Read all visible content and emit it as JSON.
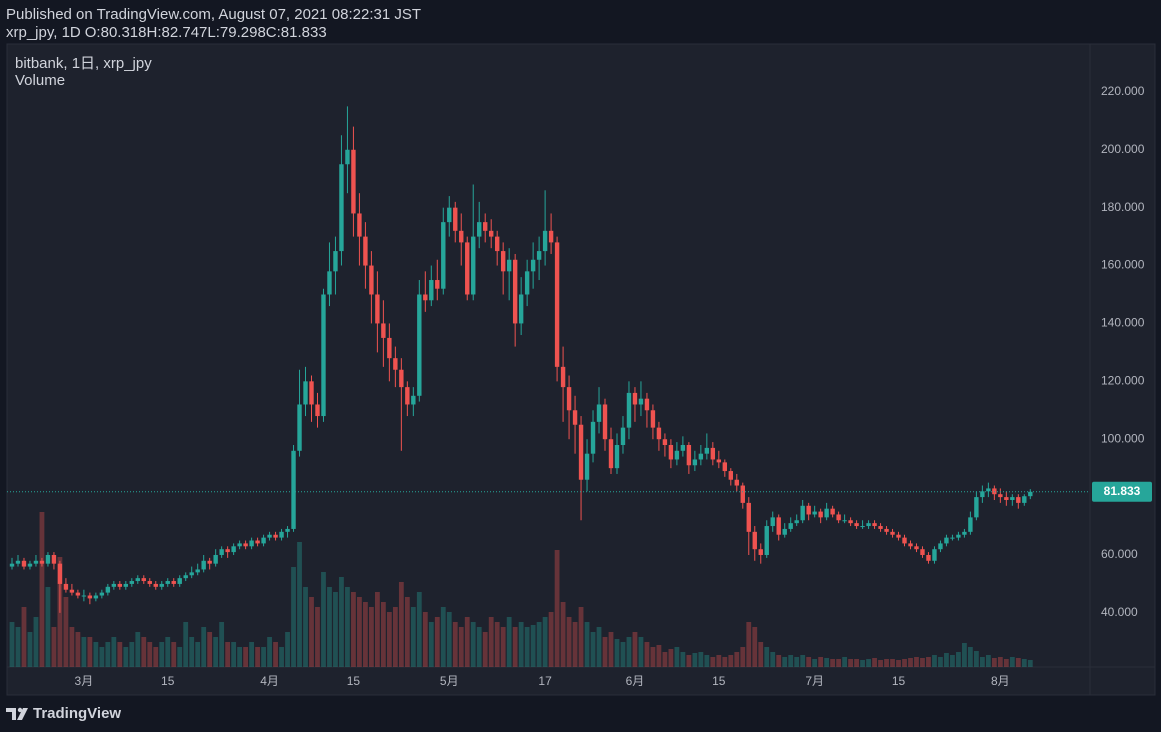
{
  "header": {
    "published": "Published on TradingView.com, August 07, 2021 08:22:31 JST",
    "symbol": "xrp_jpy, 1D"
  },
  "chart_data": {
    "type": "candlestick",
    "legend_lines": [
      "bitbank, 1日, xrp_jpy",
      "Volume"
    ],
    "ohlc_labels": [
      "O:",
      "H:",
      "L:",
      "C:"
    ],
    "up_color": "#26a69a",
    "down_color": "#ef5350",
    "grid": false,
    "ylim": [
      21.3,
      236.2
    ],
    "yticks": [
      {
        "value": 40,
        "label": "40.000"
      },
      {
        "value": 60,
        "label": "60.000"
      },
      {
        "value": 80,
        "label": "80.000"
      },
      {
        "value": 100,
        "label": "100.000"
      },
      {
        "value": 120,
        "label": "120.000"
      },
      {
        "value": 140,
        "label": "140.000"
      },
      {
        "value": 160,
        "label": "160.000"
      },
      {
        "value": 180,
        "label": "180.000"
      },
      {
        "value": 200,
        "label": "200.000"
      },
      {
        "value": 220,
        "label": "220.000"
      }
    ],
    "categories": [
      null,
      null,
      null,
      null,
      null,
      null,
      null,
      null,
      null,
      null,
      null,
      null,
      "3月",
      null,
      null,
      null,
      null,
      null,
      null,
      null,
      null,
      null,
      null,
      null,
      null,
      null,
      "15",
      null,
      null,
      null,
      null,
      null,
      null,
      null,
      null,
      null,
      null,
      null,
      null,
      null,
      null,
      null,
      null,
      "4月",
      null,
      null,
      null,
      null,
      null,
      null,
      null,
      null,
      null,
      null,
      null,
      null,
      null,
      "15",
      null,
      null,
      null,
      null,
      null,
      null,
      null,
      null,
      null,
      null,
      null,
      null,
      null,
      null,
      null,
      "5月",
      null,
      null,
      null,
      null,
      null,
      null,
      null,
      null,
      null,
      null,
      null,
      null,
      null,
      null,
      null,
      "17",
      null,
      null,
      null,
      null,
      null,
      null,
      null,
      null,
      null,
      null,
      null,
      null,
      null,
      null,
      "6月",
      null,
      null,
      null,
      null,
      null,
      null,
      null,
      null,
      null,
      null,
      null,
      null,
      null,
      "15",
      null,
      null,
      null,
      null,
      null,
      null,
      null,
      null,
      null,
      null,
      null,
      null,
      null,
      null,
      null,
      "7月",
      null,
      null,
      null,
      null,
      null,
      null,
      null,
      null,
      null,
      null,
      null,
      null,
      null,
      "15",
      null,
      null,
      null,
      null,
      null,
      null,
      null,
      null,
      null,
      null,
      null,
      null,
      null,
      null,
      null,
      null,
      "8月",
      null,
      null,
      null,
      null,
      null
    ],
    "ohlc": [
      [
        56,
        59,
        55,
        57
      ],
      [
        57,
        60,
        56,
        58
      ],
      [
        58,
        59,
        55,
        56
      ],
      [
        56,
        58,
        55,
        57
      ],
      [
        57,
        60,
        56,
        58
      ],
      [
        58,
        59,
        56,
        57
      ],
      [
        57,
        61,
        56,
        60
      ],
      [
        60,
        61,
        55,
        57
      ],
      [
        57,
        58,
        40,
        50
      ],
      [
        50,
        52,
        47,
        48
      ],
      [
        48,
        50,
        46,
        47
      ],
      [
        47,
        48,
        45,
        46
      ],
      [
        46,
        48,
        44,
        46
      ],
      [
        46,
        47,
        43,
        45
      ],
      [
        45,
        47,
        44,
        46
      ],
      [
        46,
        48,
        45,
        47
      ],
      [
        47,
        50,
        46,
        49
      ],
      [
        49,
        51,
        48,
        50
      ],
      [
        50,
        51,
        48,
        49
      ],
      [
        49,
        51,
        48,
        50
      ],
      [
        50,
        52,
        49,
        51
      ],
      [
        51,
        53,
        50,
        52
      ],
      [
        52,
        53,
        50,
        51
      ],
      [
        51,
        52,
        49,
        50
      ],
      [
        50,
        51,
        48,
        49
      ],
      [
        49,
        51,
        48,
        50
      ],
      [
        50,
        52,
        49,
        51
      ],
      [
        51,
        52,
        49,
        50
      ],
      [
        50,
        53,
        49,
        52
      ],
      [
        52,
        54,
        51,
        53
      ],
      [
        53,
        56,
        52,
        54
      ],
      [
        54,
        57,
        53,
        55
      ],
      [
        55,
        60,
        54,
        58
      ],
      [
        58,
        59,
        55,
        57
      ],
      [
        57,
        62,
        56,
        60
      ],
      [
        60,
        63,
        59,
        62
      ],
      [
        62,
        63,
        59,
        61
      ],
      [
        61,
        64,
        60,
        63
      ],
      [
        63,
        65,
        62,
        64
      ],
      [
        64,
        65,
        62,
        63
      ],
      [
        63,
        66,
        62,
        65
      ],
      [
        65,
        66,
        63,
        64
      ],
      [
        64,
        67,
        63,
        66
      ],
      [
        66,
        68,
        65,
        67
      ],
      [
        67,
        68,
        65,
        66
      ],
      [
        66,
        69,
        65,
        68
      ],
      [
        68,
        70,
        66,
        69
      ],
      [
        69,
        98,
        68,
        96
      ],
      [
        96,
        124,
        94,
        112
      ],
      [
        112,
        125,
        108,
        120
      ],
      [
        120,
        122,
        106,
        112
      ],
      [
        112,
        116,
        104,
        108
      ],
      [
        108,
        152,
        106,
        150
      ],
      [
        150,
        168,
        146,
        158
      ],
      [
        158,
        170,
        150,
        165
      ],
      [
        165,
        205,
        160,
        195
      ],
      [
        195,
        215,
        185,
        200
      ],
      [
        200,
        208,
        170,
        178
      ],
      [
        178,
        185,
        160,
        170
      ],
      [
        170,
        175,
        152,
        160
      ],
      [
        160,
        165,
        140,
        150
      ],
      [
        150,
        158,
        130,
        140
      ],
      [
        140,
        148,
        125,
        135
      ],
      [
        135,
        140,
        120,
        128
      ],
      [
        128,
        132,
        118,
        124
      ],
      [
        124,
        128,
        96,
        118
      ],
      [
        118,
        120,
        108,
        112
      ],
      [
        112,
        118,
        108,
        115
      ],
      [
        115,
        155,
        113,
        150
      ],
      [
        150,
        158,
        144,
        148
      ],
      [
        148,
        160,
        146,
        155
      ],
      [
        155,
        162,
        148,
        152
      ],
      [
        152,
        180,
        150,
        175
      ],
      [
        175,
        184,
        170,
        180
      ],
      [
        180,
        182,
        168,
        172
      ],
      [
        172,
        178,
        160,
        168
      ],
      [
        168,
        170,
        148,
        150
      ],
      [
        150,
        188,
        148,
        170
      ],
      [
        170,
        182,
        166,
        175
      ],
      [
        175,
        178,
        168,
        172
      ],
      [
        172,
        176,
        166,
        170
      ],
      [
        170,
        172,
        160,
        165
      ],
      [
        165,
        168,
        150,
        158
      ],
      [
        158,
        166,
        148,
        162
      ],
      [
        162,
        164,
        132,
        140
      ],
      [
        140,
        156,
        136,
        150
      ],
      [
        150,
        162,
        146,
        158
      ],
      [
        158,
        168,
        152,
        162
      ],
      [
        162,
        170,
        155,
        165
      ],
      [
        165,
        186,
        160,
        172
      ],
      [
        172,
        178,
        164,
        168
      ],
      [
        168,
        170,
        120,
        125
      ],
      [
        125,
        132,
        106,
        118
      ],
      [
        118,
        122,
        100,
        110
      ],
      [
        110,
        115,
        95,
        105
      ],
      [
        105,
        108,
        72,
        86
      ],
      [
        86,
        100,
        82,
        95
      ],
      [
        95,
        110,
        92,
        106
      ],
      [
        106,
        118,
        102,
        112
      ],
      [
        112,
        114,
        96,
        100
      ],
      [
        100,
        104,
        88,
        90
      ],
      [
        90,
        102,
        88,
        98
      ],
      [
        98,
        108,
        95,
        104
      ],
      [
        104,
        120,
        100,
        116
      ],
      [
        116,
        118,
        106,
        112
      ],
      [
        112,
        120,
        108,
        114
      ],
      [
        114,
        116,
        104,
        110
      ],
      [
        110,
        112,
        100,
        104
      ],
      [
        104,
        106,
        96,
        100
      ],
      [
        100,
        102,
        94,
        98
      ],
      [
        98,
        100,
        90,
        93
      ],
      [
        93,
        99,
        91,
        96
      ],
      [
        96,
        101,
        94,
        98
      ],
      [
        98,
        99,
        88,
        91
      ],
      [
        91,
        96,
        89,
        93
      ],
      [
        93,
        98,
        91,
        95
      ],
      [
        95,
        102,
        93,
        97
      ],
      [
        97,
        99,
        91,
        93
      ],
      [
        93,
        96,
        90,
        92
      ],
      [
        92,
        93,
        87,
        89
      ],
      [
        89,
        90,
        84,
        86
      ],
      [
        86,
        88,
        82,
        84
      ],
      [
        84,
        85,
        76,
        78
      ],
      [
        78,
        80,
        60,
        68
      ],
      [
        68,
        70,
        58,
        62
      ],
      [
        62,
        64,
        57,
        60
      ],
      [
        60,
        72,
        59,
        70
      ],
      [
        70,
        75,
        68,
        73
      ],
      [
        73,
        74,
        65,
        67
      ],
      [
        67,
        71,
        66,
        69
      ],
      [
        69,
        73,
        68,
        71
      ],
      [
        71,
        74,
        70,
        72
      ],
      [
        72,
        79,
        71,
        77
      ],
      [
        77,
        78,
        72,
        74
      ],
      [
        74,
        77,
        73,
        75
      ],
      [
        75,
        76,
        71,
        73
      ],
      [
        73,
        78,
        72,
        76
      ],
      [
        76,
        77,
        73,
        74
      ],
      [
        74,
        75,
        71,
        72
      ],
      [
        72,
        74,
        71,
        72
      ],
      [
        72,
        73,
        70,
        71
      ],
      [
        71,
        72,
        69,
        70
      ],
      [
        70,
        72,
        69,
        70
      ],
      [
        70,
        72,
        69,
        71
      ],
      [
        71,
        72,
        69,
        70
      ],
      [
        70,
        71,
        68,
        69
      ],
      [
        69,
        70,
        67,
        68
      ],
      [
        68,
        69,
        66,
        67
      ],
      [
        67,
        68,
        65,
        66
      ],
      [
        66,
        67,
        63,
        64
      ],
      [
        64,
        65,
        62,
        63
      ],
      [
        63,
        64,
        61,
        62
      ],
      [
        62,
        63,
        59,
        60
      ],
      [
        60,
        61,
        57,
        58
      ],
      [
        58,
        63,
        57,
        62
      ],
      [
        62,
        65,
        61,
        64
      ],
      [
        64,
        67,
        63,
        66
      ],
      [
        66,
        67,
        65,
        66
      ],
      [
        66,
        68,
        65,
        67
      ],
      [
        67,
        69,
        66,
        68
      ],
      [
        68,
        75,
        67,
        73
      ],
      [
        73,
        82,
        72,
        80
      ],
      [
        80,
        84,
        78,
        82
      ],
      [
        82,
        85,
        80,
        83
      ],
      [
        83,
        84,
        79,
        81
      ],
      [
        81,
        83,
        78,
        80
      ],
      [
        80,
        82,
        77,
        79
      ],
      [
        79,
        81,
        77,
        80
      ],
      [
        80,
        81,
        76,
        78
      ],
      [
        78,
        81,
        77,
        80.3
      ],
      [
        80.318,
        82.747,
        79.298,
        81.833
      ]
    ],
    "volume": [
      45,
      40,
      60,
      35,
      50,
      155,
      80,
      40,
      110,
      70,
      40,
      35,
      30,
      30,
      25,
      20,
      25,
      30,
      25,
      20,
      25,
      35,
      30,
      25,
      20,
      25,
      30,
      25,
      20,
      45,
      30,
      25,
      40,
      35,
      30,
      45,
      25,
      25,
      20,
      20,
      25,
      20,
      20,
      30,
      25,
      20,
      35,
      100,
      125,
      80,
      70,
      60,
      95,
      80,
      75,
      90,
      80,
      75,
      70,
      65,
      60,
      75,
      65,
      55,
      60,
      85,
      70,
      60,
      75,
      55,
      45,
      50,
      60,
      55,
      45,
      40,
      50,
      45,
      40,
      35,
      50,
      45,
      40,
      50,
      40,
      45,
      40,
      42,
      45,
      50,
      55,
      117,
      65,
      50,
      45,
      60,
      45,
      35,
      40,
      30,
      35,
      28,
      25,
      30,
      35,
      30,
      25,
      20,
      22,
      15,
      18,
      20,
      15,
      12,
      14,
      15,
      12,
      10,
      12,
      10,
      12,
      15,
      20,
      45,
      40,
      25,
      20,
      15,
      12,
      10,
      12,
      10,
      12,
      10,
      8,
      10,
      9,
      8,
      8,
      10,
      8,
      8,
      7,
      8,
      9,
      7,
      8,
      8,
      7,
      8,
      9,
      10,
      9,
      10,
      12,
      10,
      14,
      12,
      15,
      24,
      20,
      16,
      10,
      12,
      9,
      10,
      8,
      10,
      9,
      8,
      7
    ]
  },
  "footer": {
    "logo": "TradingView"
  }
}
